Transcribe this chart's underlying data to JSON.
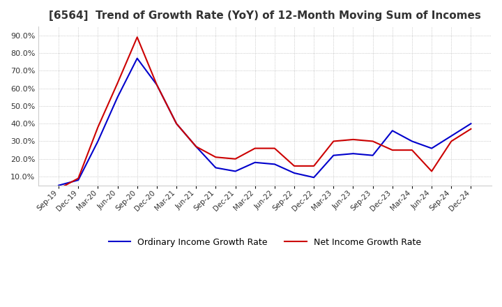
{
  "title": "[6564]  Trend of Growth Rate (YoY) of 12-Month Moving Sum of Incomes",
  "title_fontsize": 11,
  "ylim": [
    0.05,
    0.95
  ],
  "yticks": [
    0.1,
    0.2,
    0.3,
    0.4,
    0.5,
    0.6,
    0.7,
    0.8,
    0.9
  ],
  "ytick_labels": [
    "10.0%",
    "20.0%",
    "30.0%",
    "40.0%",
    "50.0%",
    "60.0%",
    "70.0%",
    "80.0%",
    "90.0%"
  ],
  "background_color": "#ffffff",
  "plot_background": "#ffffff",
  "grid_color": "#aaaaaa",
  "x_labels": [
    "Sep-19",
    "Dec-19",
    "Mar-20",
    "Jun-20",
    "Sep-20",
    "Dec-20",
    "Mar-21",
    "Jun-21",
    "Sep-21",
    "Dec-21",
    "Mar-22",
    "Jun-22",
    "Sep-22",
    "Dec-22",
    "Mar-23",
    "Jun-23",
    "Sep-23",
    "Dec-23",
    "Mar-24",
    "Jun-24",
    "Sep-24",
    "Dec-24"
  ],
  "ordinary_income": [
    0.05,
    0.08,
    0.3,
    0.55,
    0.77,
    0.62,
    0.4,
    0.27,
    0.15,
    0.13,
    0.18,
    0.17,
    0.12,
    0.095,
    0.22,
    0.23,
    0.22,
    0.36,
    0.3,
    0.26,
    0.33,
    0.4
  ],
  "net_income": [
    0.03,
    0.09,
    0.38,
    0.63,
    0.89,
    0.62,
    0.4,
    0.27,
    0.21,
    0.2,
    0.26,
    0.26,
    0.16,
    0.16,
    0.3,
    0.31,
    0.3,
    0.25,
    0.25,
    0.13,
    0.3,
    0.37
  ],
  "ordinary_color": "#0000cc",
  "net_color": "#cc0000",
  "line_width": 1.5,
  "legend_ordinary": "Ordinary Income Growth Rate",
  "legend_net": "Net Income Growth Rate",
  "figsize": [
    7.2,
    4.4
  ],
  "dpi": 100
}
